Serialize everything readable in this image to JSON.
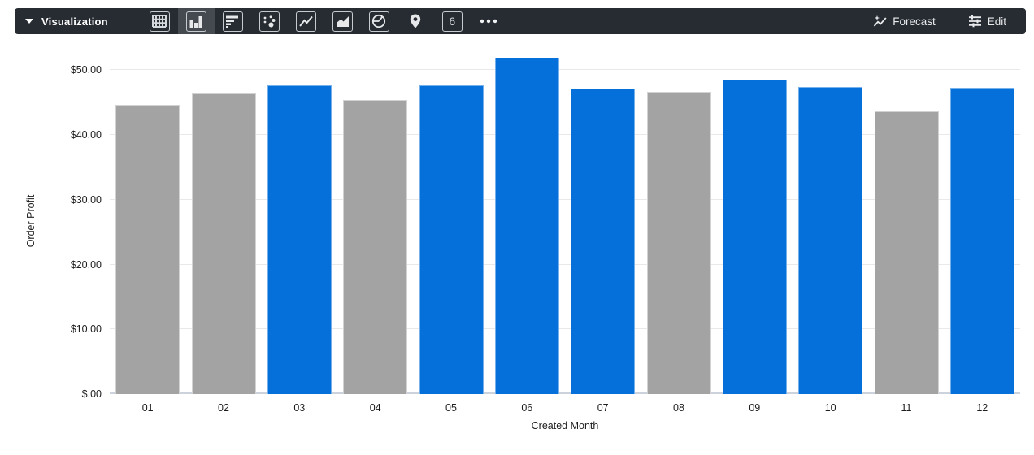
{
  "toolbar": {
    "label": "Visualization",
    "viz_types": [
      {
        "name": "table",
        "selected": false
      },
      {
        "name": "column",
        "selected": true
      },
      {
        "name": "bar",
        "selected": false
      },
      {
        "name": "scatter",
        "selected": false
      },
      {
        "name": "line",
        "selected": false
      },
      {
        "name": "area",
        "selected": false
      },
      {
        "name": "pie",
        "selected": false
      },
      {
        "name": "map",
        "selected": false
      },
      {
        "name": "single-value",
        "selected": false,
        "glyph": "6"
      },
      {
        "name": "more",
        "selected": false
      }
    ],
    "forecast_label": "Forecast",
    "edit_label": "Edit"
  },
  "chart_data": {
    "type": "bar",
    "title": "",
    "xlabel": "Created Month",
    "ylabel": "Order Profit",
    "categories": [
      "01",
      "02",
      "03",
      "04",
      "05",
      "06",
      "07",
      "08",
      "09",
      "10",
      "11",
      "12"
    ],
    "values": [
      44.6,
      46.4,
      47.6,
      45.4,
      47.6,
      51.9,
      47.2,
      46.7,
      48.5,
      47.4,
      43.7,
      47.3
    ],
    "bar_colors": [
      "gray",
      "gray",
      "blue",
      "gray",
      "blue",
      "blue",
      "blue",
      "gray",
      "blue",
      "blue",
      "gray",
      "blue"
    ],
    "colors": {
      "blue": "#0670DA",
      "gray": "#a3a3a3"
    },
    "ylim": [
      0,
      53.3
    ],
    "ytick_values": [
      0,
      10,
      20,
      30,
      40,
      50
    ],
    "ytick_labels": [
      "$.00",
      "$10.00",
      "$20.00",
      "$30.00",
      "$40.00",
      "$50.00"
    ],
    "grid": true,
    "legend": "none"
  }
}
